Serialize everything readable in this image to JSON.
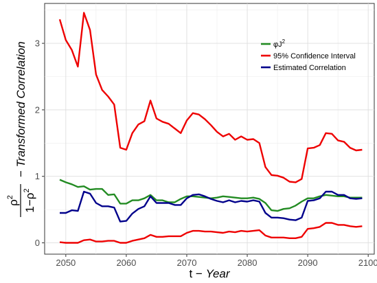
{
  "chart_data": {
    "type": "line",
    "title": "",
    "xlabel": {
      "prefix": "t − ",
      "italic": "Year"
    },
    "ylabel": {
      "fraction_num": "ρ",
      "fraction_num_sup": "2",
      "fraction_den": "1−ρ",
      "fraction_den_sup": "2",
      "dash": "−",
      "italic": "Transformed Correlation"
    },
    "xlim": [
      2046.5,
      2101
    ],
    "ylim": [
      -0.17,
      3.6
    ],
    "xticks": [
      2050,
      2060,
      2070,
      2080,
      2090,
      2100
    ],
    "yticks": [
      0,
      1,
      2,
      3
    ],
    "grid": true,
    "legend_position": "top-right",
    "x": [
      2049,
      2050,
      2051,
      2052,
      2053,
      2054,
      2055,
      2056,
      2057,
      2058,
      2059,
      2060,
      2061,
      2062,
      2063,
      2064,
      2065,
      2066,
      2067,
      2068,
      2069,
      2070,
      2071,
      2072,
      2073,
      2074,
      2075,
      2076,
      2077,
      2078,
      2079,
      2080,
      2081,
      2082,
      2083,
      2084,
      2085,
      2086,
      2087,
      2088,
      2089,
      2090,
      2091,
      2092,
      2093,
      2094,
      2095,
      2096,
      2097,
      2098,
      2099
    ],
    "series": [
      {
        "name": "φJ²",
        "legend_label": {
          "base": "φJ",
          "sup": "2"
        },
        "color": "#228b22",
        "values": [
          0.95,
          0.91,
          0.88,
          0.84,
          0.85,
          0.8,
          0.81,
          0.81,
          0.72,
          0.73,
          0.59,
          0.59,
          0.64,
          0.64,
          0.67,
          0.72,
          0.64,
          0.64,
          0.61,
          0.61,
          0.66,
          0.7,
          0.7,
          0.69,
          0.68,
          0.67,
          0.68,
          0.7,
          0.69,
          0.68,
          0.67,
          0.67,
          0.68,
          0.66,
          0.6,
          0.49,
          0.48,
          0.51,
          0.52,
          0.56,
          0.62,
          0.67,
          0.67,
          0.7,
          0.72,
          0.71,
          0.7,
          0.7,
          0.68,
          0.68,
          0.68
        ]
      },
      {
        "name": "95% Confidence Interval",
        "legend_label": {
          "base": "95% Confidence Interval",
          "sup": ""
        },
        "color": "#ee0000",
        "values": [
          3.36,
          3.05,
          2.9,
          2.65,
          3.46,
          3.2,
          2.53,
          2.3,
          2.2,
          2.08,
          1.43,
          1.4,
          1.65,
          1.78,
          1.83,
          2.14,
          1.87,
          1.82,
          1.79,
          1.72,
          1.65,
          1.84,
          1.95,
          1.93,
          1.86,
          1.77,
          1.67,
          1.6,
          1.64,
          1.55,
          1.6,
          1.55,
          1.56,
          1.5,
          1.14,
          1.02,
          1.01,
          0.98,
          0.92,
          0.91,
          0.96,
          1.42,
          1.43,
          1.47,
          1.65,
          1.64,
          1.54,
          1.52,
          1.43,
          1.39,
          1.4
        ]
      },
      {
        "name": "95% Confidence Interval (lower)",
        "legend_label": null,
        "color": "#ee0000",
        "values": [
          0.01,
          0.0,
          0.0,
          0.0,
          0.04,
          0.05,
          0.02,
          0.02,
          0.03,
          0.03,
          0.0,
          0.0,
          0.03,
          0.05,
          0.07,
          0.12,
          0.09,
          0.09,
          0.1,
          0.1,
          0.1,
          0.15,
          0.18,
          0.18,
          0.17,
          0.17,
          0.16,
          0.15,
          0.17,
          0.16,
          0.18,
          0.17,
          0.18,
          0.19,
          0.11,
          0.08,
          0.08,
          0.08,
          0.07,
          0.07,
          0.09,
          0.21,
          0.22,
          0.24,
          0.3,
          0.3,
          0.27,
          0.27,
          0.25,
          0.24,
          0.25
        ]
      },
      {
        "name": "Estimated Correlation",
        "legend_label": {
          "base": "Estimated Correlation",
          "sup": ""
        },
        "color": "#00008b",
        "values": [
          0.45,
          0.45,
          0.49,
          0.48,
          0.77,
          0.74,
          0.6,
          0.55,
          0.55,
          0.53,
          0.32,
          0.33,
          0.44,
          0.51,
          0.55,
          0.7,
          0.6,
          0.6,
          0.6,
          0.57,
          0.57,
          0.67,
          0.72,
          0.73,
          0.7,
          0.66,
          0.63,
          0.61,
          0.64,
          0.61,
          0.63,
          0.62,
          0.64,
          0.62,
          0.45,
          0.38,
          0.38,
          0.37,
          0.35,
          0.34,
          0.38,
          0.63,
          0.64,
          0.67,
          0.77,
          0.77,
          0.72,
          0.72,
          0.67,
          0.66,
          0.67
        ]
      }
    ]
  }
}
